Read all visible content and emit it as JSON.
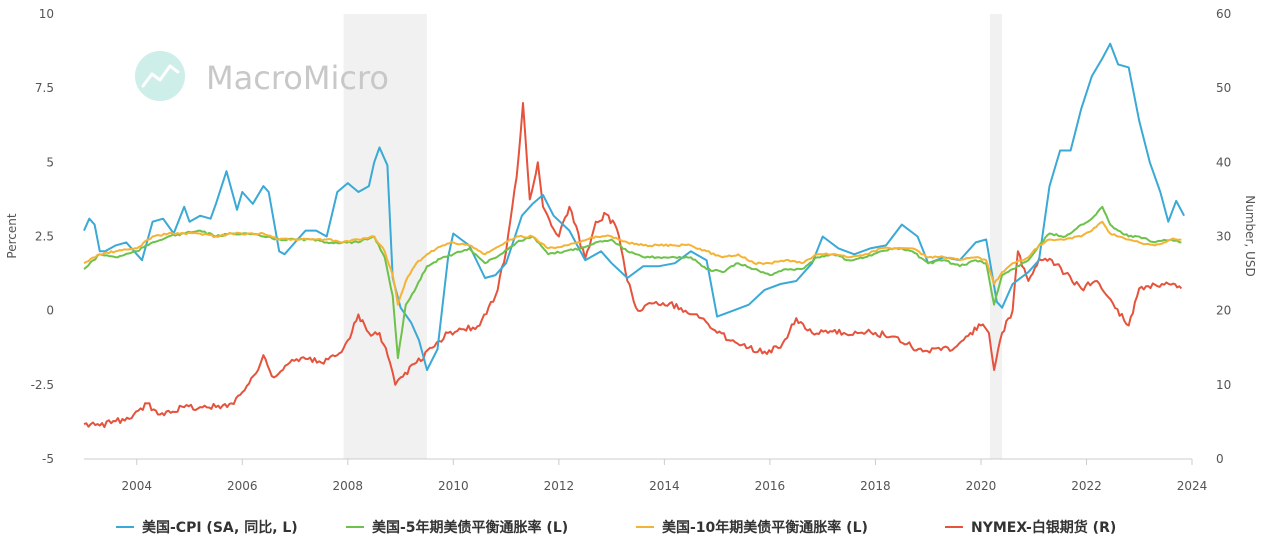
{
  "chart_data": {
    "type": "line",
    "watermark": "MacroMicro",
    "left_axis": {
      "title": "Percent",
      "range": [
        -5,
        10
      ],
      "ticks": [
        -5,
        -2.5,
        0,
        2.5,
        5,
        7.5,
        10
      ],
      "tick_labels": [
        "-5",
        "-2.5",
        "0",
        "2.5",
        "5",
        "7.5",
        "10"
      ]
    },
    "right_axis": {
      "title": "Number, USD",
      "range": [
        0,
        60
      ],
      "ticks": [
        0,
        10,
        20,
        30,
        40,
        50,
        60
      ],
      "tick_labels": [
        "0",
        "10",
        "20",
        "30",
        "40",
        "50",
        "60"
      ]
    },
    "x_axis": {
      "range": [
        2003,
        2024
      ],
      "ticks": [
        2004,
        2006,
        2008,
        2010,
        2012,
        2014,
        2016,
        2018,
        2020,
        2022,
        2024
      ],
      "tick_labels": [
        "2004",
        "2006",
        "2008",
        "2010",
        "2012",
        "2014",
        "2016",
        "2018",
        "2020",
        "2022",
        "2024"
      ]
    },
    "recessions": [
      [
        2007.92,
        2009.5
      ],
      [
        2020.17,
        2020.4
      ]
    ],
    "legend_position": "bottom",
    "series": [
      {
        "name": "美国-CPI (SA, 同比, L)",
        "axis": "left",
        "color": "#3aa9d6",
        "x": [
          2003.0,
          2003.1,
          2003.2,
          2003.3,
          2003.4,
          2003.6,
          2003.8,
          2004.0,
          2004.1,
          2004.3,
          2004.5,
          2004.7,
          2004.9,
          2005.0,
          2005.2,
          2005.4,
          2005.5,
          2005.7,
          2005.9,
          2006.0,
          2006.2,
          2006.4,
          2006.5,
          2006.7,
          2006.8,
          2007.0,
          2007.2,
          2007.4,
          2007.6,
          2007.8,
          2008.0,
          2008.2,
          2008.4,
          2008.5,
          2008.6,
          2008.75,
          2008.85,
          2009.0,
          2009.2,
          2009.35,
          2009.5,
          2009.7,
          2009.9,
          2010.0,
          2010.3,
          2010.6,
          2010.8,
          2011.0,
          2011.3,
          2011.5,
          2011.7,
          2011.9,
          2012.2,
          2012.5,
          2012.8,
          2013.0,
          2013.3,
          2013.6,
          2013.9,
          2014.2,
          2014.5,
          2014.8,
          2015.0,
          2015.3,
          2015.6,
          2015.9,
          2016.2,
          2016.5,
          2016.8,
          2017.0,
          2017.3,
          2017.6,
          2017.9,
          2018.2,
          2018.5,
          2018.8,
          2019.0,
          2019.3,
          2019.6,
          2019.9,
          2020.1,
          2020.3,
          2020.4,
          2020.6,
          2020.9,
          2021.1,
          2021.3,
          2021.5,
          2021.7,
          2021.9,
          2022.1,
          2022.3,
          2022.45,
          2022.6,
          2022.8,
          2023.0,
          2023.2,
          2023.4,
          2023.55,
          2023.7,
          2023.85
        ],
        "y": [
          2.7,
          3.1,
          2.9,
          2.0,
          2.0,
          2.2,
          2.3,
          1.9,
          1.7,
          3.0,
          3.1,
          2.6,
          3.5,
          3.0,
          3.2,
          3.1,
          3.6,
          4.7,
          3.4,
          4.0,
          3.6,
          4.2,
          4.0,
          2.0,
          1.9,
          2.3,
          2.7,
          2.7,
          2.5,
          4.0,
          4.3,
          4.0,
          4.2,
          5.0,
          5.5,
          4.9,
          1.1,
          0.1,
          -0.4,
          -1.0,
          -2.0,
          -1.3,
          1.8,
          2.6,
          2.2,
          1.1,
          1.2,
          1.6,
          3.2,
          3.6,
          3.9,
          3.2,
          2.7,
          1.7,
          2.0,
          1.6,
          1.1,
          1.5,
          1.5,
          1.6,
          2.0,
          1.7,
          -0.2,
          0.0,
          0.2,
          0.7,
          0.9,
          1.0,
          1.6,
          2.5,
          2.1,
          1.9,
          2.1,
          2.2,
          2.9,
          2.5,
          1.6,
          1.8,
          1.7,
          2.3,
          2.4,
          0.3,
          0.1,
          0.9,
          1.3,
          1.7,
          4.2,
          5.4,
          5.4,
          6.8,
          7.9,
          8.5,
          9.0,
          8.3,
          8.2,
          6.4,
          5.0,
          4.0,
          3.0,
          3.7,
          3.2
        ]
      },
      {
        "name": "美国-5年期美债平衡通胀率 (L)",
        "axis": "left",
        "color": "#6cc24a",
        "x": [
          2003.0,
          2003.3,
          2003.6,
          2004.0,
          2004.3,
          2004.6,
          2004.9,
          2005.2,
          2005.5,
          2005.8,
          2006.1,
          2006.4,
          2006.7,
          2007.0,
          2007.3,
          2007.6,
          2007.9,
          2008.2,
          2008.5,
          2008.7,
          2008.85,
          2008.95,
          2009.1,
          2009.3,
          2009.5,
          2009.8,
          2010.0,
          2010.3,
          2010.6,
          2010.9,
          2011.2,
          2011.5,
          2011.8,
          2012.1,
          2012.4,
          2012.7,
          2013.0,
          2013.3,
          2013.6,
          2013.9,
          2014.2,
          2014.5,
          2014.8,
          2015.1,
          2015.4,
          2015.7,
          2016.0,
          2016.3,
          2016.6,
          2016.9,
          2017.2,
          2017.5,
          2017.8,
          2018.1,
          2018.4,
          2018.7,
          2019.0,
          2019.3,
          2019.6,
          2019.9,
          2020.1,
          2020.25,
          2020.4,
          2020.6,
          2020.9,
          2021.1,
          2021.3,
          2021.6,
          2021.9,
          2022.1,
          2022.3,
          2022.45,
          2022.6,
          2022.8,
          2023.0,
          2023.3,
          2023.6,
          2023.8
        ],
        "y": [
          1.4,
          1.9,
          1.8,
          2.0,
          2.3,
          2.5,
          2.6,
          2.7,
          2.5,
          2.6,
          2.6,
          2.5,
          2.4,
          2.4,
          2.4,
          2.3,
          2.3,
          2.3,
          2.5,
          1.8,
          0.5,
          -1.6,
          0.2,
          0.8,
          1.5,
          1.8,
          1.9,
          2.1,
          1.6,
          1.9,
          2.3,
          2.5,
          1.9,
          2.0,
          2.1,
          2.3,
          2.4,
          2.0,
          1.8,
          1.8,
          1.8,
          1.8,
          1.4,
          1.3,
          1.6,
          1.4,
          1.2,
          1.4,
          1.4,
          1.8,
          1.9,
          1.7,
          1.8,
          2.0,
          2.1,
          2.0,
          1.6,
          1.7,
          1.5,
          1.7,
          1.6,
          0.2,
          1.2,
          1.4,
          1.7,
          2.2,
          2.6,
          2.5,
          2.9,
          3.1,
          3.5,
          2.9,
          2.7,
          2.5,
          2.5,
          2.3,
          2.4,
          2.3
        ]
      },
      {
        "name": "美国-10年期美债平衡通胀率 (L)",
        "axis": "left",
        "color": "#f5b335",
        "x": [
          2003.0,
          2003.3,
          2003.6,
          2004.0,
          2004.3,
          2004.6,
          2004.9,
          2005.2,
          2005.5,
          2005.8,
          2006.1,
          2006.4,
          2006.7,
          2007.0,
          2007.3,
          2007.6,
          2007.9,
          2008.2,
          2008.5,
          2008.7,
          2008.85,
          2008.95,
          2009.1,
          2009.3,
          2009.5,
          2009.8,
          2010.0,
          2010.3,
          2010.6,
          2010.9,
          2011.2,
          2011.5,
          2011.8,
          2012.1,
          2012.4,
          2012.7,
          2013.0,
          2013.3,
          2013.6,
          2013.9,
          2014.2,
          2014.5,
          2014.8,
          2015.1,
          2015.4,
          2015.7,
          2016.0,
          2016.3,
          2016.6,
          2016.9,
          2017.2,
          2017.5,
          2017.8,
          2018.1,
          2018.4,
          2018.7,
          2019.0,
          2019.3,
          2019.6,
          2019.9,
          2020.1,
          2020.25,
          2020.4,
          2020.6,
          2020.9,
          2021.1,
          2021.3,
          2021.6,
          2021.9,
          2022.1,
          2022.3,
          2022.45,
          2022.6,
          2022.8,
          2023.0,
          2023.3,
          2023.6,
          2023.8
        ],
        "y": [
          1.6,
          1.9,
          2.0,
          2.1,
          2.5,
          2.6,
          2.6,
          2.6,
          2.5,
          2.6,
          2.6,
          2.6,
          2.4,
          2.4,
          2.4,
          2.4,
          2.3,
          2.4,
          2.5,
          2.0,
          1.2,
          0.2,
          1.0,
          1.6,
          1.9,
          2.2,
          2.3,
          2.2,
          1.9,
          2.2,
          2.5,
          2.5,
          2.1,
          2.2,
          2.3,
          2.5,
          2.5,
          2.3,
          2.2,
          2.2,
          2.2,
          2.2,
          2.0,
          1.8,
          1.9,
          1.6,
          1.6,
          1.7,
          1.6,
          1.9,
          1.9,
          1.8,
          1.9,
          2.1,
          2.1,
          2.1,
          1.8,
          1.8,
          1.7,
          1.8,
          1.7,
          0.9,
          1.3,
          1.6,
          1.8,
          2.2,
          2.4,
          2.4,
          2.5,
          2.7,
          3.0,
          2.6,
          2.5,
          2.4,
          2.3,
          2.2,
          2.4,
          2.4
        ]
      },
      {
        "name": "NYMEX-白银期货 (R)",
        "axis": "right",
        "color": "#e5533d",
        "x": [
          2003.0,
          2003.3,
          2003.6,
          2003.9,
          2004.2,
          2004.4,
          2004.6,
          2004.9,
          2005.2,
          2005.5,
          2005.8,
          2006.0,
          2006.3,
          2006.4,
          2006.6,
          2006.9,
          2007.2,
          2007.5,
          2007.8,
          2008.0,
          2008.2,
          2008.4,
          2008.6,
          2008.8,
          2008.9,
          2009.0,
          2009.3,
          2009.6,
          2009.9,
          2010.2,
          2010.5,
          2010.8,
          2011.0,
          2011.2,
          2011.32,
          2011.45,
          2011.6,
          2011.7,
          2011.9,
          2012.0,
          2012.2,
          2012.5,
          2012.7,
          2012.9,
          2013.1,
          2013.3,
          2013.5,
          2013.8,
          2014.1,
          2014.4,
          2014.7,
          2015.0,
          2015.3,
          2015.6,
          2015.9,
          2016.2,
          2016.5,
          2016.8,
          2017.1,
          2017.4,
          2017.7,
          2018.0,
          2018.3,
          2018.6,
          2018.9,
          2019.2,
          2019.5,
          2019.8,
          2020.0,
          2020.15,
          2020.25,
          2020.4,
          2020.6,
          2020.7,
          2020.9,
          2021.1,
          2021.3,
          2021.6,
          2021.9,
          2022.2,
          2022.5,
          2022.8,
          2023.0,
          2023.3,
          2023.6,
          2023.8
        ],
        "y": [
          4.7,
          4.5,
          5.1,
          5.5,
          7.5,
          6.0,
          6.5,
          7.0,
          7.0,
          7.0,
          7.5,
          9.0,
          12.0,
          14.0,
          11.0,
          13.0,
          13.5,
          13.0,
          14.0,
          16.0,
          19.5,
          17.0,
          17.0,
          13.0,
          10.0,
          11.0,
          13.0,
          15.0,
          17.0,
          17.5,
          18.0,
          22.0,
          28.0,
          38.0,
          48.0,
          35.0,
          40.0,
          34.0,
          31.0,
          30.0,
          34.0,
          27.0,
          32.0,
          33.0,
          31.0,
          24.0,
          20.0,
          21.0,
          21.0,
          20.0,
          19.0,
          17.0,
          16.0,
          15.0,
          14.5,
          15.0,
          19.0,
          17.0,
          17.0,
          17.0,
          17.0,
          17.0,
          16.5,
          15.5,
          14.5,
          15.0,
          15.0,
          17.0,
          18.0,
          17.0,
          12.0,
          17.0,
          20.0,
          28.0,
          24.0,
          27.0,
          27.0,
          25.0,
          23.0,
          24.0,
          21.0,
          18.0,
          23.0,
          23.5,
          23.5,
          23.0
        ]
      }
    ]
  }
}
